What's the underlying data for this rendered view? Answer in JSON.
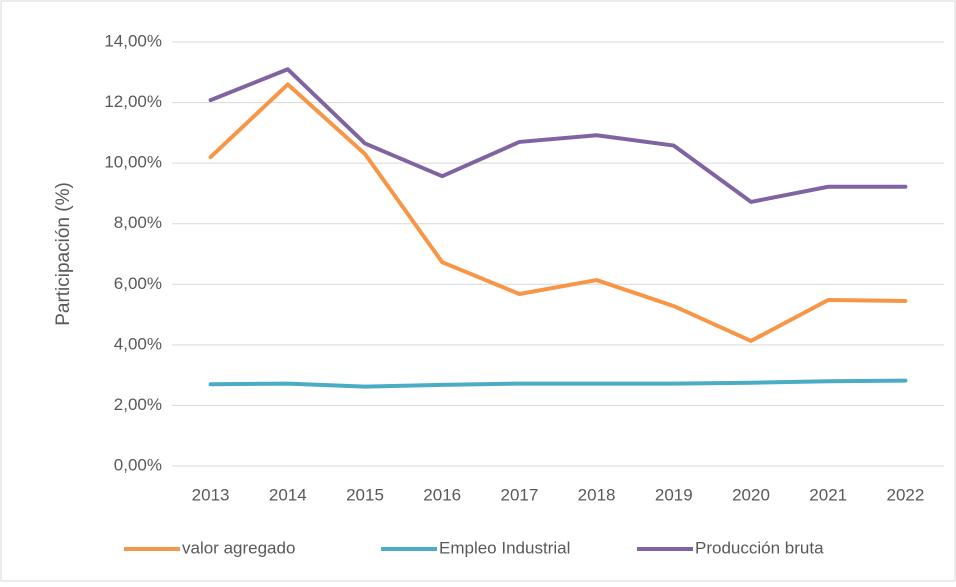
{
  "chart_data": {
    "type": "line",
    "y_label": "Participación (%)",
    "categories": [
      "2013",
      "2014",
      "2015",
      "2016",
      "2017",
      "2018",
      "2019",
      "2020",
      "2021",
      "2022"
    ],
    "series": [
      {
        "name": "valor agregado",
        "color": "#f79646",
        "values": [
          10.2,
          12.6,
          10.3,
          6.73,
          5.68,
          6.14,
          5.28,
          4.13,
          5.48,
          5.45
        ]
      },
      {
        "name": "Empleo Industrial",
        "color": "#4bacc6",
        "values": [
          2.7,
          2.72,
          2.62,
          2.68,
          2.72,
          2.72,
          2.72,
          2.75,
          2.8,
          2.82
        ]
      },
      {
        "name": "Producción bruta",
        "color": "#8064a2",
        "values": [
          12.08,
          13.1,
          10.65,
          9.57,
          10.7,
          10.92,
          10.58,
          8.72,
          9.22,
          9.22
        ]
      }
    ],
    "ylim": [
      0,
      14
    ],
    "yticks": [
      {
        "value": 0,
        "label": "0,00%"
      },
      {
        "value": 2,
        "label": "2,00%"
      },
      {
        "value": 4,
        "label": "4,00%"
      },
      {
        "value": 6,
        "label": "6,00%"
      },
      {
        "value": 8,
        "label": "8,00%"
      },
      {
        "value": 10,
        "label": "10,00%"
      },
      {
        "value": 12,
        "label": "12,00%"
      },
      {
        "value": 14,
        "label": "14,00%"
      }
    ],
    "grid": true,
    "legend": "bottom"
  }
}
